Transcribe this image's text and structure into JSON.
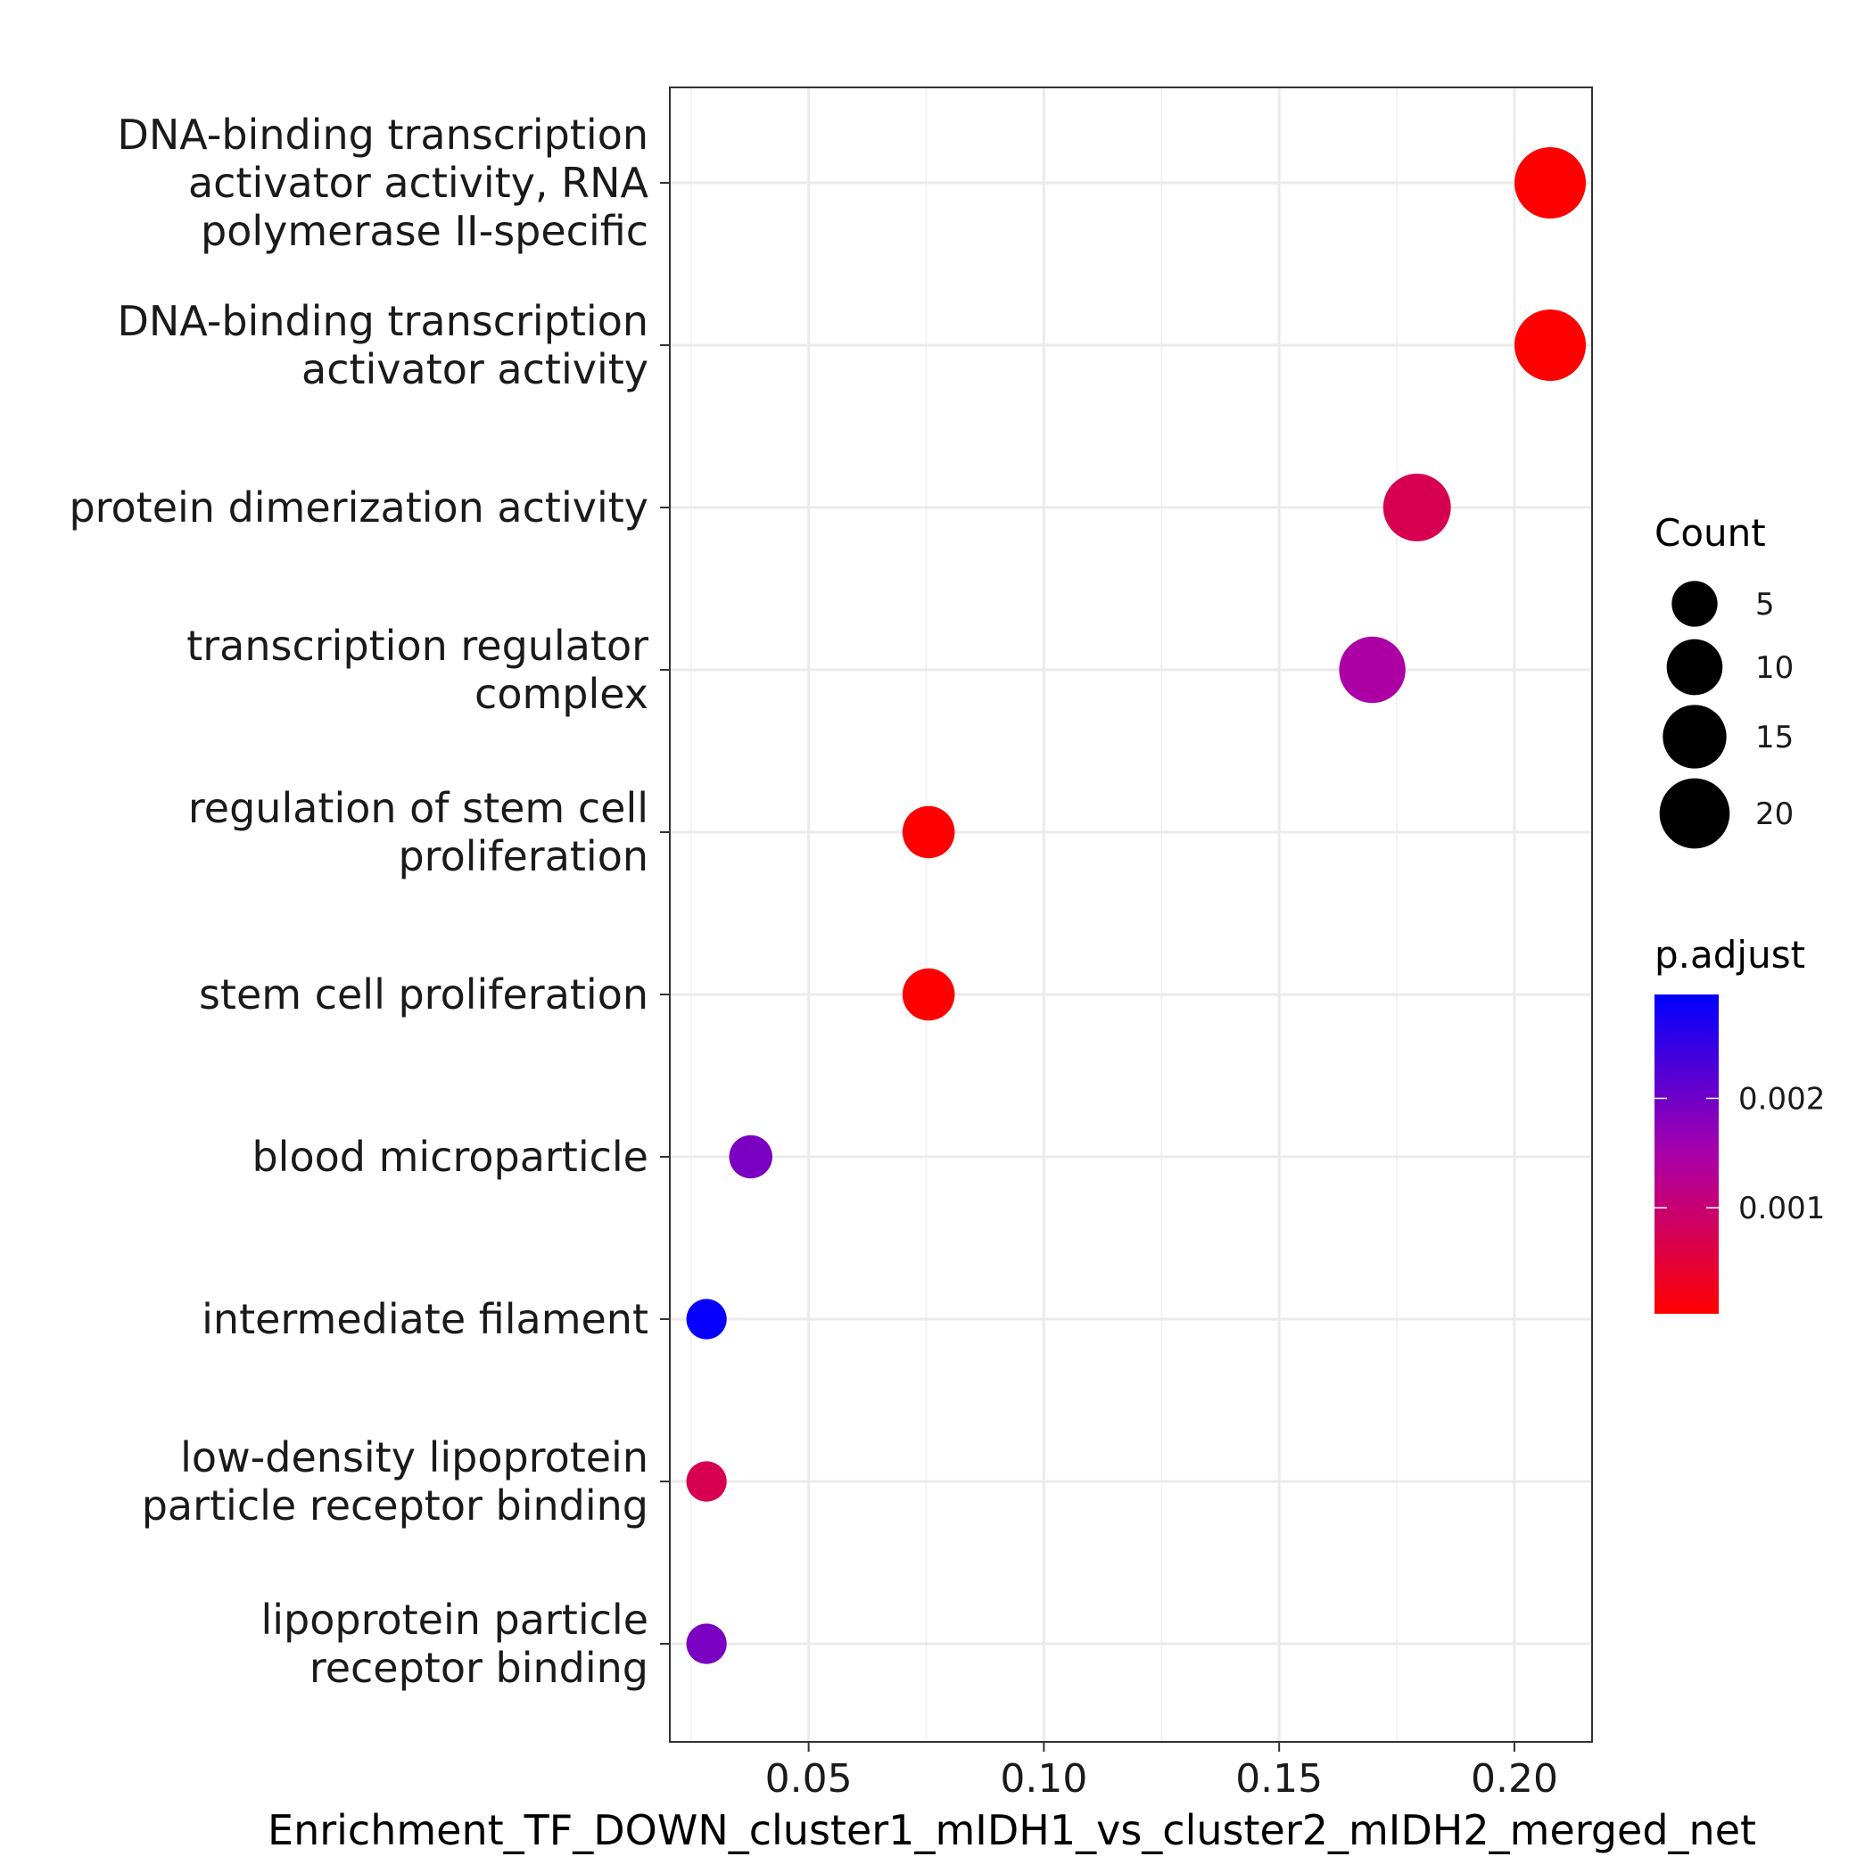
{
  "chart_data": {
    "type": "scatter",
    "xlabel": "Enrichment_TF_DOWN_cluster1_mIDH1_vs_cluster2_mIDH2_merged_net",
    "x_ticks": [
      0.05,
      0.1,
      0.15,
      0.2
    ],
    "x_tick_labels": [
      "0.05",
      "0.10",
      "0.15",
      "0.20"
    ],
    "xlim": [
      0.0205,
      0.2165
    ],
    "grid": true,
    "points": [
      {
        "label_lines": [
          "DNA-binding transcription",
          "activator activity, RNA",
          "polymerase II-specific"
        ],
        "x": 0.2076,
        "count": 21,
        "p_adjust": 3e-05
      },
      {
        "label_lines": [
          "DNA-binding transcription",
          "activator activity"
        ],
        "x": 0.2076,
        "count": 21,
        "p_adjust": 3e-05
      },
      {
        "label_lines": [
          "protein dimerization activity"
        ],
        "x": 0.1793,
        "count": 18,
        "p_adjust": 0.00072
      },
      {
        "label_lines": [
          "transcription regulator",
          "complex"
        ],
        "x": 0.1698,
        "count": 17,
        "p_adjust": 0.00145
      },
      {
        "label_lines": [
          "regulation of stem cell",
          "proliferation"
        ],
        "x": 0.0755,
        "count": 8,
        "p_adjust": 3e-05
      },
      {
        "label_lines": [
          "stem cell proliferation"
        ],
        "x": 0.0755,
        "count": 8,
        "p_adjust": 3e-05
      },
      {
        "label_lines": [
          "blood microparticle"
        ],
        "x": 0.0377,
        "count": 4,
        "p_adjust": 0.0019
      },
      {
        "label_lines": [
          "intermediate filament"
        ],
        "x": 0.0283,
        "count": 3,
        "p_adjust": 0.0029
      },
      {
        "label_lines": [
          "low-density lipoprotein",
          "particle receptor binding"
        ],
        "x": 0.0283,
        "count": 3,
        "p_adjust": 0.00072
      },
      {
        "label_lines": [
          "lipoprotein particle",
          "receptor binding"
        ],
        "x": 0.0283,
        "count": 3,
        "p_adjust": 0.0019
      }
    ],
    "size_legend": {
      "title": "Count",
      "entries": [
        {
          "value": 5,
          "label": "5"
        },
        {
          "value": 10,
          "label": "10"
        },
        {
          "value": 15,
          "label": "15"
        },
        {
          "value": 20,
          "label": "20"
        }
      ]
    },
    "color_legend": {
      "title": "p.adjust",
      "range": [
        3e-05,
        0.00295
      ],
      "low_color": "#ff0000",
      "mid_color": "#aa00aa",
      "high_color": "#0000ff",
      "ticks": [
        {
          "value": 0.001,
          "label": "0.001"
        },
        {
          "value": 0.002,
          "label": "0.002"
        }
      ]
    }
  }
}
